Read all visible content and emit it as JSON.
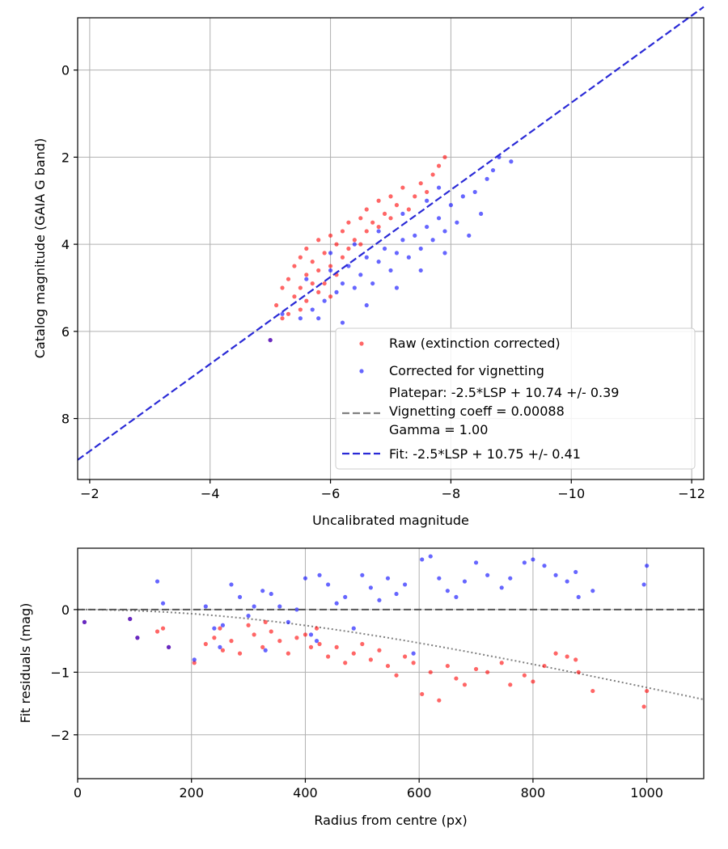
{
  "chart_data": [
    {
      "type": "scatter",
      "xlabel": "Uncalibrated magnitude",
      "ylabel": "Catalog magnitude (GAIA G band)",
      "xlim": [
        -1.8,
        -12.2
      ],
      "ylim": [
        9.4,
        -1.2
      ],
      "xticks": [
        -2,
        -4,
        -6,
        -8,
        -10,
        -12
      ],
      "yticks": [
        0,
        2,
        4,
        6,
        8
      ],
      "xtick_labels": [
        "−2",
        "−4",
        "−6",
        "−8",
        "−10",
        "−12"
      ],
      "ytick_labels": [
        "0",
        "2",
        "4",
        "6",
        "8"
      ],
      "grid": true,
      "legend_position": "bottom-right",
      "legend": {
        "raw": "Raw (extinction corrected)",
        "corrected": "Corrected for vignetting",
        "platepar_lines": [
          "Platepar: -2.5*LSP + 10.74 +/- 0.39",
          "Vignetting coeff = 0.00088",
          "Gamma = 1.00"
        ],
        "fit": "Fit: -2.5*LSP + 10.75 +/- 0.41"
      },
      "fit_line": {
        "slope": 1.0,
        "intercept": 10.75,
        "x_range": [
          -1.8,
          -12.2
        ],
        "color": "#2a2ad6"
      },
      "series": [
        {
          "name": "Raw (extinction corrected)",
          "color": "#ff0000",
          "points": [
            [
              -5.0,
              6.2
            ],
            [
              -5.1,
              5.4
            ],
            [
              -5.2,
              5.0
            ],
            [
              -5.3,
              5.6
            ],
            [
              -5.3,
              4.8
            ],
            [
              -5.4,
              5.2
            ],
            [
              -5.4,
              4.5
            ],
            [
              -5.5,
              4.3
            ],
            [
              -5.5,
              5.0
            ],
            [
              -5.6,
              4.7
            ],
            [
              -5.6,
              4.1
            ],
            [
              -5.7,
              4.9
            ],
            [
              -5.7,
              4.4
            ],
            [
              -5.8,
              3.9
            ],
            [
              -5.8,
              4.6
            ],
            [
              -5.9,
              4.2
            ],
            [
              -5.9,
              4.9
            ],
            [
              -6.0,
              3.8
            ],
            [
              -6.0,
              4.5
            ],
            [
              -6.1,
              4.0
            ],
            [
              -6.1,
              4.7
            ],
            [
              -6.2,
              3.7
            ],
            [
              -6.2,
              4.3
            ],
            [
              -6.3,
              3.5
            ],
            [
              -6.3,
              4.1
            ],
            [
              -6.4,
              3.9
            ],
            [
              -6.5,
              3.4
            ],
            [
              -6.5,
              4.0
            ],
            [
              -6.6,
              3.2
            ],
            [
              -6.6,
              3.7
            ],
            [
              -6.7,
              3.5
            ],
            [
              -6.8,
              3.0
            ],
            [
              -6.8,
              3.6
            ],
            [
              -6.9,
              3.3
            ],
            [
              -7.0,
              2.9
            ],
            [
              -7.0,
              3.4
            ],
            [
              -7.1,
              3.1
            ],
            [
              -7.2,
              2.7
            ],
            [
              -7.3,
              3.2
            ],
            [
              -7.4,
              2.9
            ],
            [
              -7.5,
              2.6
            ],
            [
              -7.6,
              2.8
            ],
            [
              -7.7,
              2.4
            ],
            [
              -7.8,
              2.2
            ],
            [
              -7.9,
              2.0
            ],
            [
              -5.2,
              5.7
            ],
            [
              -5.5,
              5.5
            ],
            [
              -5.6,
              5.3
            ],
            [
              -5.8,
              5.1
            ],
            [
              -6.0,
              5.2
            ]
          ]
        },
        {
          "name": "Corrected for vignetting",
          "color": "#0000ff",
          "points": [
            [
              -5.0,
              6.2
            ],
            [
              -5.2,
              5.6
            ],
            [
              -5.5,
              5.7
            ],
            [
              -5.7,
              5.5
            ],
            [
              -5.9,
              5.3
            ],
            [
              -6.0,
              4.6
            ],
            [
              -6.1,
              5.1
            ],
            [
              -6.2,
              4.9
            ],
            [
              -6.3,
              4.5
            ],
            [
              -6.4,
              5.0
            ],
            [
              -6.5,
              4.7
            ],
            [
              -6.6,
              4.3
            ],
            [
              -6.7,
              4.9
            ],
            [
              -6.8,
              4.4
            ],
            [
              -6.9,
              4.1
            ],
            [
              -7.0,
              4.6
            ],
            [
              -7.1,
              4.2
            ],
            [
              -7.2,
              3.9
            ],
            [
              -7.3,
              4.3
            ],
            [
              -7.4,
              3.8
            ],
            [
              -7.5,
              4.1
            ],
            [
              -7.6,
              3.6
            ],
            [
              -7.7,
              3.9
            ],
            [
              -7.8,
              3.4
            ],
            [
              -7.9,
              3.7
            ],
            [
              -8.0,
              3.1
            ],
            [
              -8.1,
              3.5
            ],
            [
              -8.2,
              2.9
            ],
            [
              -8.4,
              2.8
            ],
            [
              -8.6,
              2.5
            ],
            [
              -8.7,
              2.3
            ],
            [
              -8.8,
              2.0
            ],
            [
              -9.0,
              2.1
            ],
            [
              -6.6,
              5.4
            ],
            [
              -6.2,
              5.8
            ],
            [
              -5.8,
              5.7
            ],
            [
              -7.1,
              5.0
            ],
            [
              -7.5,
              4.6
            ],
            [
              -7.9,
              4.2
            ],
            [
              -8.3,
              3.8
            ],
            [
              -8.5,
              3.3
            ],
            [
              -6.4,
              4.0
            ],
            [
              -6.8,
              3.7
            ],
            [
              -7.2,
              3.3
            ],
            [
              -7.6,
              3.0
            ],
            [
              -7.8,
              2.7
            ],
            [
              -5.6,
              4.8
            ],
            [
              -6.0,
              4.2
            ]
          ]
        }
      ]
    },
    {
      "type": "scatter",
      "xlabel": "Radius from centre (px)",
      "ylabel": "Fit residuals (mag)",
      "xlim": [
        0,
        1100
      ],
      "ylim": [
        -2.7,
        0.98
      ],
      "xticks": [
        0,
        200,
        400,
        600,
        800,
        1000
      ],
      "yticks": [
        0,
        -1,
        -2
      ],
      "xtick_labels": [
        "0",
        "200",
        "400",
        "600",
        "800",
        "1000"
      ],
      "ytick_labels": [
        "0",
        "−1",
        "−2"
      ],
      "grid": true,
      "zero_line": {
        "y": 0,
        "color": "#555555"
      },
      "vignetting_curve": {
        "coeff": 0.00088,
        "scale": 2.5,
        "color": "#808080"
      },
      "series": [
        {
          "name": "Raw (extinction corrected)",
          "color": "#ff0000",
          "points": [
            [
              12,
              -0.2
            ],
            [
              92,
              -0.15
            ],
            [
              105,
              -0.45
            ],
            [
              140,
              -0.35
            ],
            [
              150,
              -0.3
            ],
            [
              160,
              -0.6
            ],
            [
              205,
              -0.85
            ],
            [
              225,
              -0.55
            ],
            [
              240,
              -0.45
            ],
            [
              255,
              -0.65
            ],
            [
              270,
              -0.5
            ],
            [
              285,
              -0.7
            ],
            [
              300,
              -0.25
            ],
            [
              310,
              -0.4
            ],
            [
              325,
              -0.6
            ],
            [
              340,
              -0.35
            ],
            [
              355,
              -0.5
            ],
            [
              370,
              -0.7
            ],
            [
              385,
              -0.45
            ],
            [
              400,
              -0.4
            ],
            [
              410,
              -0.6
            ],
            [
              425,
              -0.55
            ],
            [
              440,
              -0.75
            ],
            [
              455,
              -0.6
            ],
            [
              470,
              -0.85
            ],
            [
              485,
              -0.7
            ],
            [
              500,
              -0.55
            ],
            [
              515,
              -0.8
            ],
            [
              530,
              -0.65
            ],
            [
              545,
              -0.9
            ],
            [
              560,
              -1.05
            ],
            [
              575,
              -0.75
            ],
            [
              590,
              -0.85
            ],
            [
              605,
              -1.35
            ],
            [
              620,
              -1.0
            ],
            [
              635,
              -1.45
            ],
            [
              650,
              -0.9
            ],
            [
              665,
              -1.1
            ],
            [
              680,
              -1.2
            ],
            [
              700,
              -0.95
            ],
            [
              720,
              -1.0
            ],
            [
              745,
              -0.85
            ],
            [
              760,
              -1.2
            ],
            [
              785,
              -1.05
            ],
            [
              800,
              -1.15
            ],
            [
              820,
              -0.9
            ],
            [
              840,
              -0.7
            ],
            [
              860,
              -0.75
            ],
            [
              875,
              -0.8
            ],
            [
              880,
              -1.0
            ],
            [
              905,
              -1.3
            ],
            [
              995,
              -1.55
            ],
            [
              1000,
              -1.3
            ],
            [
              250,
              -0.3
            ],
            [
              330,
              -0.2
            ],
            [
              420,
              -0.3
            ]
          ]
        },
        {
          "name": "Corrected for vignetting",
          "color": "#0000ff",
          "points": [
            [
              12,
              -0.2
            ],
            [
              92,
              -0.15
            ],
            [
              105,
              -0.45
            ],
            [
              140,
              0.45
            ],
            [
              150,
              0.1
            ],
            [
              160,
              -0.6
            ],
            [
              205,
              -0.8
            ],
            [
              225,
              0.05
            ],
            [
              240,
              -0.3
            ],
            [
              255,
              -0.25
            ],
            [
              270,
              0.4
            ],
            [
              285,
              0.2
            ],
            [
              300,
              -0.1
            ],
            [
              310,
              0.05
            ],
            [
              325,
              0.3
            ],
            [
              340,
              0.25
            ],
            [
              355,
              0.05
            ],
            [
              370,
              -0.2
            ],
            [
              385,
              0.0
            ],
            [
              400,
              0.5
            ],
            [
              410,
              -0.4
            ],
            [
              425,
              0.55
            ],
            [
              440,
              0.4
            ],
            [
              455,
              0.1
            ],
            [
              470,
              0.2
            ],
            [
              485,
              -0.3
            ],
            [
              500,
              0.55
            ],
            [
              515,
              0.35
            ],
            [
              530,
              0.15
            ],
            [
              545,
              0.5
            ],
            [
              560,
              0.25
            ],
            [
              575,
              0.4
            ],
            [
              590,
              -0.7
            ],
            [
              605,
              0.8
            ],
            [
              620,
              0.85
            ],
            [
              635,
              0.5
            ],
            [
              650,
              0.3
            ],
            [
              665,
              0.2
            ],
            [
              680,
              0.45
            ],
            [
              700,
              0.75
            ],
            [
              720,
              0.55
            ],
            [
              745,
              0.35
            ],
            [
              760,
              0.5
            ],
            [
              785,
              0.75
            ],
            [
              800,
              0.8
            ],
            [
              820,
              0.7
            ],
            [
              840,
              0.55
            ],
            [
              860,
              0.45
            ],
            [
              875,
              0.6
            ],
            [
              880,
              0.2
            ],
            [
              905,
              0.3
            ],
            [
              995,
              0.4
            ],
            [
              1000,
              0.7
            ],
            [
              250,
              -0.6
            ],
            [
              330,
              -0.65
            ],
            [
              420,
              -0.5
            ]
          ]
        }
      ]
    }
  ]
}
